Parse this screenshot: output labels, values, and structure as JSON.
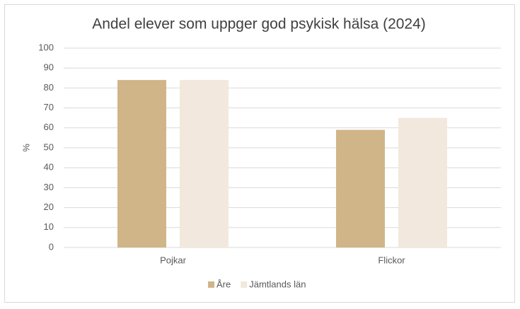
{
  "chart_data": {
    "type": "bar",
    "title": "Andel elever som uppger god psykisk hälsa (2024)",
    "y_label": "%",
    "categories": [
      "Pojkar",
      "Flickor"
    ],
    "series": [
      {
        "name": "Åre",
        "color": "#d0b589",
        "values": [
          84,
          59
        ]
      },
      {
        "name": "Jämtlands län",
        "color": "#f2e8dd",
        "values": [
          84,
          65
        ]
      }
    ],
    "ylim": [
      0,
      100
    ],
    "yticks": [
      0,
      10,
      20,
      30,
      40,
      50,
      60,
      70,
      80,
      90,
      100
    ],
    "grid": true,
    "legend": "bottom"
  }
}
